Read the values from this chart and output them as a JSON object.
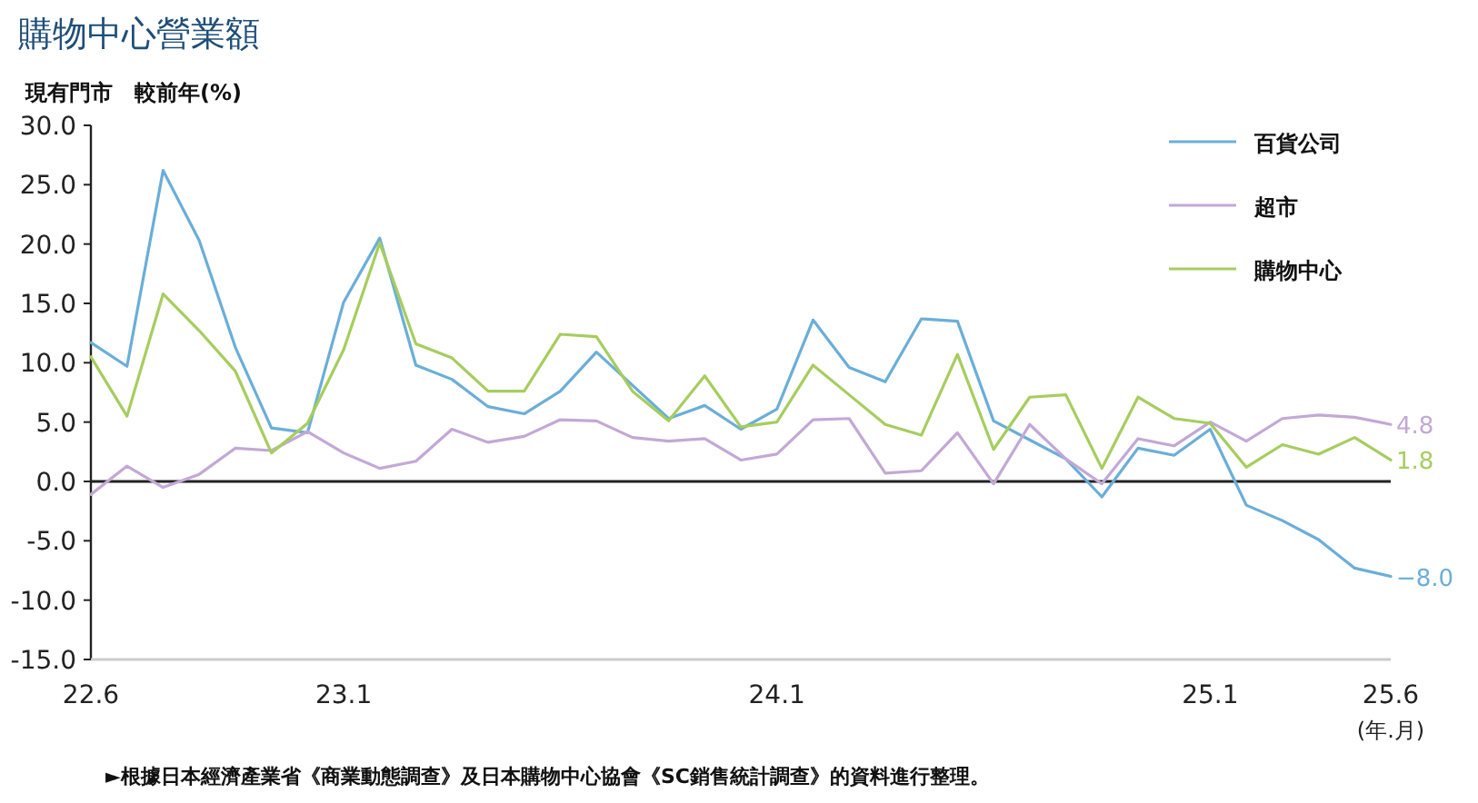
{
  "chart_data": {
    "type": "line",
    "title": "購物中心營業額",
    "ylabel": "現有門市　較前年(%)",
    "xlabel": "(年.月)",
    "categories": [
      "22.6",
      null,
      null,
      null,
      null,
      null,
      null,
      "23.1",
      null,
      null,
      null,
      null,
      null,
      null,
      null,
      null,
      null,
      null,
      null,
      "24.1",
      null,
      null,
      null,
      null,
      null,
      null,
      null,
      null,
      null,
      null,
      null,
      "25.1",
      null,
      null,
      null,
      null,
      "25.6"
    ],
    "series": [
      {
        "name": "百貨公司",
        "color": "#6aaed8",
        "values": [
          11.7,
          9.7,
          26.2,
          20.3,
          11.3,
          4.5,
          4.1,
          15.1,
          20.5,
          9.8,
          8.6,
          6.3,
          5.7,
          7.6,
          10.9,
          8.1,
          5.3,
          6.4,
          4.4,
          6.1,
          13.6,
          9.6,
          8.4,
          13.7,
          13.5,
          5.1,
          3.5,
          1.9,
          -1.3,
          2.8,
          2.2,
          4.4,
          -2.0,
          -3.3,
          -4.9,
          -7.3,
          -8.0
        ],
        "value_labels": [
          null,
          null,
          null,
          null,
          null,
          null,
          null,
          null,
          null,
          null,
          null,
          null,
          null,
          null,
          null,
          null,
          null,
          null,
          null,
          null,
          null,
          null,
          null,
          null,
          null,
          null,
          null,
          null,
          null,
          null,
          null,
          null,
          null,
          null,
          null,
          null,
          "−8.0"
        ]
      },
      {
        "name": "超市",
        "color": "#c3a8d6",
        "values": [
          -1.1,
          1.3,
          -0.5,
          0.6,
          2.8,
          2.6,
          4.2,
          2.4,
          1.1,
          1.7,
          4.4,
          3.3,
          3.8,
          5.2,
          5.1,
          3.7,
          3.4,
          3.6,
          1.8,
          2.3,
          5.2,
          5.3,
          0.7,
          0.9,
          4.1,
          -0.2,
          4.8,
          1.9,
          -0.2,
          3.6,
          3.0,
          5.0,
          3.4,
          5.3,
          5.6,
          5.4,
          4.8
        ],
        "value_labels": [
          null,
          null,
          null,
          null,
          null,
          null,
          null,
          null,
          null,
          null,
          null,
          null,
          null,
          null,
          null,
          null,
          null,
          null,
          null,
          null,
          null,
          null,
          null,
          null,
          null,
          null,
          null,
          null,
          null,
          null,
          null,
          null,
          null,
          null,
          null,
          null,
          "4.8"
        ]
      },
      {
        "name": "購物中心",
        "color": "#a6cd5e",
        "values": [
          10.5,
          5.5,
          15.8,
          12.7,
          9.3,
          2.4,
          4.9,
          11.1,
          20.1,
          11.6,
          10.4,
          7.6,
          7.6,
          12.4,
          12.2,
          7.6,
          5.1,
          8.9,
          4.6,
          5.0,
          9.8,
          7.3,
          4.8,
          3.9,
          10.7,
          2.7,
          7.1,
          7.3,
          1.1,
          7.1,
          5.3,
          4.9,
          1.2,
          3.1,
          2.3,
          3.7,
          1.8
        ],
        "value_labels": [
          null,
          null,
          null,
          null,
          null,
          null,
          null,
          null,
          null,
          null,
          null,
          null,
          null,
          null,
          null,
          null,
          null,
          null,
          null,
          null,
          null,
          null,
          null,
          null,
          null,
          null,
          null,
          null,
          null,
          null,
          null,
          null,
          null,
          null,
          null,
          null,
          "1.8"
        ]
      }
    ],
    "ylim": [
      -15,
      30
    ],
    "yticks": [
      {
        "value": 30,
        "label": "30.0"
      },
      {
        "value": 25,
        "label": "25.0"
      },
      {
        "value": 20,
        "label": "20.0"
      },
      {
        "value": 15,
        "label": "15.0"
      },
      {
        "value": 10,
        "label": "10.0"
      },
      {
        "value": 5,
        "label": "5.0"
      },
      {
        "value": 0,
        "label": "0.0"
      },
      {
        "value": -5,
        "label": "-5.0"
      },
      {
        "value": -10,
        "label": "-10.0"
      },
      {
        "value": -15,
        "label": "-15.0"
      }
    ],
    "ref_lines": [
      {
        "axis": "y",
        "value": 0,
        "color": "#222222"
      }
    ],
    "legend": "top right",
    "grid": false,
    "line_style": "solid",
    "annotations": [
      "►根據日本經濟產業省《商業動態調查》及日本購物中心協會《SC銷售統計調查》的資料進行整理。"
    ]
  }
}
